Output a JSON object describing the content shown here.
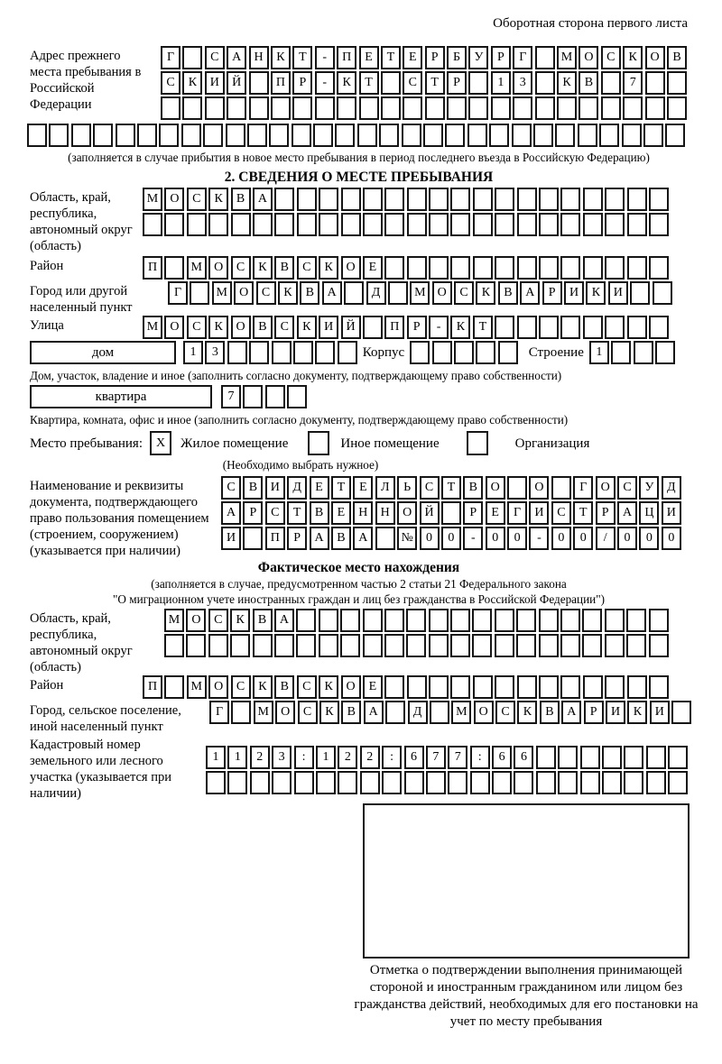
{
  "colors": {
    "ink": "#000000",
    "paper": "#ffffff"
  },
  "page": {
    "back_label": "Оборотная сторона первого листа"
  },
  "prev_address": {
    "label": "Адрес прежнего места пребывания в Российской Федерации",
    "rows": [
      [
        "Г",
        "",
        "С",
        "А",
        "Н",
        "К",
        "Т",
        "-",
        "П",
        "Е",
        "Т",
        "Е",
        "Р",
        "Б",
        "У",
        "Р",
        "Г",
        "",
        "М",
        "О",
        "С",
        "К",
        "О",
        "В"
      ],
      [
        "С",
        "К",
        "И",
        "Й",
        "",
        "П",
        "Р",
        "-",
        "К",
        "Т",
        "",
        "С",
        "Т",
        "Р",
        "",
        "1",
        "3",
        "",
        "К",
        "В",
        "",
        "7",
        "",
        ""
      ],
      [
        "",
        "",
        "",
        "",
        "",
        "",
        "",
        "",
        "",
        "",
        "",
        "",
        "",
        "",
        "",
        "",
        "",
        "",
        "",
        "",
        "",
        "",
        "",
        ""
      ],
      [
        "",
        "",
        "",
        "",
        "",
        "",
        "",
        "",
        "",
        "",
        "",
        "",
        "",
        "",
        "",
        "",
        "",
        "",
        "",
        "",
        "",
        "",
        "",
        "",
        "",
        "",
        "",
        "",
        "",
        ""
      ]
    ],
    "note": "(заполняется в случае прибытия в новое место пребывания в период последнего въезда в Российскую Федерацию)"
  },
  "section2": {
    "title": "2. СВЕДЕНИЯ О МЕСТЕ ПРЕБЫВАНИЯ",
    "oblast": {
      "label": "Область, край, республика, автономный округ (область)",
      "rows": [
        [
          "М",
          "О",
          "С",
          "К",
          "В",
          "А",
          "",
          "",
          "",
          "",
          "",
          "",
          "",
          "",
          "",
          "",
          "",
          "",
          "",
          "",
          "",
          "",
          "",
          ""
        ],
        [
          "",
          "",
          "",
          "",
          "",
          "",
          "",
          "",
          "",
          "",
          "",
          "",
          "",
          "",
          "",
          "",
          "",
          "",
          "",
          "",
          "",
          "",
          "",
          ""
        ]
      ]
    },
    "rayon": {
      "label": "Район",
      "row": [
        "П",
        "",
        "М",
        "О",
        "С",
        "К",
        "В",
        "С",
        "К",
        "О",
        "Е",
        "",
        "",
        "",
        "",
        "",
        "",
        "",
        "",
        "",
        "",
        "",
        "",
        ""
      ]
    },
    "gorod": {
      "label": "Город или другой населенный пункт",
      "row": [
        "Г",
        "",
        "М",
        "О",
        "С",
        "К",
        "В",
        "А",
        "",
        "Д",
        "",
        "М",
        "О",
        "С",
        "К",
        "В",
        "А",
        "Р",
        "И",
        "К",
        "И",
        "",
        ""
      ]
    },
    "ulitsa": {
      "label": "Улица",
      "row": [
        "М",
        "О",
        "С",
        "К",
        "О",
        "В",
        "С",
        "К",
        "И",
        "Й",
        "",
        "П",
        "Р",
        "-",
        "К",
        "Т",
        "",
        "",
        "",
        "",
        "",
        "",
        "",
        ""
      ]
    },
    "dom": {
      "label": "дом",
      "boxes": [
        "1",
        "3",
        "",
        "",
        "",
        "",
        "",
        ""
      ],
      "korpus_label": "Корпус",
      "korpus_boxes": [
        "",
        "",
        "",
        "",
        ""
      ],
      "stroenie_label": "Строение",
      "stroenie_boxes": [
        "1",
        "",
        "",
        ""
      ],
      "note": "Дом, участок, владение и иное (заполнить согласно документу, подтверждающему право собственности)"
    },
    "kvartira": {
      "label": "квартира",
      "boxes": [
        "7",
        "",
        "",
        ""
      ],
      "note": "Квартира, комната, офис и иное (заполнить согласно документу, подтверждающему право собственности)"
    },
    "mesto": {
      "label": "Место пребывания:",
      "options": [
        {
          "label": "Жилое помещение",
          "value": "X"
        },
        {
          "label": "Иное помещение",
          "value": ""
        },
        {
          "label": "Организация",
          "value": ""
        }
      ],
      "note": "(Необходимо выбрать нужное)"
    },
    "document": {
      "label": "Наименование и реквизиты документа, подтверждающего право пользования помещением (строением, сооружением) (указывается при наличии)",
      "rows": [
        [
          "С",
          "В",
          "И",
          "Д",
          "Е",
          "Т",
          "Е",
          "Л",
          "Ь",
          "С",
          "Т",
          "В",
          "О",
          "",
          "О",
          "",
          "Г",
          "О",
          "С",
          "У",
          "Д"
        ],
        [
          "А",
          "Р",
          "С",
          "Т",
          "В",
          "Е",
          "Н",
          "Н",
          "О",
          "Й",
          "",
          "Р",
          "Е",
          "Г",
          "И",
          "С",
          "Т",
          "Р",
          "А",
          "Ц",
          "И"
        ],
        [
          "И",
          "",
          "П",
          "Р",
          "А",
          "В",
          "А",
          "",
          "№",
          "0",
          "0",
          "-",
          "0",
          "0",
          "-",
          "0",
          "0",
          "/",
          "0",
          "0",
          "0"
        ]
      ]
    }
  },
  "factual": {
    "title": "Фактическое место нахождения",
    "note_line1": "(заполняется в случае, предусмотренном частью 2 статьи 21 Федерального закона",
    "note_line2": "\"О миграционном учете иностранных граждан и лиц без гражданства в Российской Федерации\")",
    "oblast": {
      "label": "Область, край, республика, автономный округ (область)",
      "rows": [
        [
          "М",
          "О",
          "С",
          "К",
          "В",
          "А",
          "",
          "",
          "",
          "",
          "",
          "",
          "",
          "",
          "",
          "",
          "",
          "",
          "",
          "",
          "",
          "",
          ""
        ],
        [
          "",
          "",
          "",
          "",
          "",
          "",
          "",
          "",
          "",
          "",
          "",
          "",
          "",
          "",
          "",
          "",
          "",
          "",
          "",
          "",
          "",
          "",
          ""
        ]
      ]
    },
    "rayon": {
      "label": "Район",
      "row": [
        "П",
        "",
        "М",
        "О",
        "С",
        "К",
        "В",
        "С",
        "К",
        "О",
        "Е",
        "",
        "",
        "",
        "",
        "",
        "",
        "",
        "",
        "",
        "",
        "",
        "",
        ""
      ]
    },
    "gorod": {
      "label": "Город, сельское поселение, иной населенный пункт",
      "row": [
        "Г",
        "",
        "М",
        "О",
        "С",
        "К",
        "В",
        "А",
        "",
        "Д",
        "",
        "М",
        "О",
        "С",
        "К",
        "В",
        "А",
        "Р",
        "И",
        "К",
        "И",
        ""
      ]
    },
    "kadastr": {
      "label": "Кадастровый номер земельного или лесного участка (указывается при наличии)",
      "rows": [
        [
          "1",
          "1",
          "2",
          "3",
          ":",
          "1",
          "2",
          "2",
          ":",
          "6",
          "7",
          "7",
          ":",
          "6",
          "6",
          "",
          "",
          "",
          "",
          "",
          "",
          ""
        ],
        [
          "",
          "",
          "",
          "",
          "",
          "",
          "",
          "",
          "",
          "",
          "",
          "",
          "",
          "",
          "",
          "",
          "",
          "",
          "",
          "",
          "",
          ""
        ]
      ]
    },
    "stamp_note": "Отметка о подтверждении выполнения принимающей стороной и иностранным гражданином или лицом без гражданства действий, необходимых для его постановки на учет по месту пребывания"
  }
}
